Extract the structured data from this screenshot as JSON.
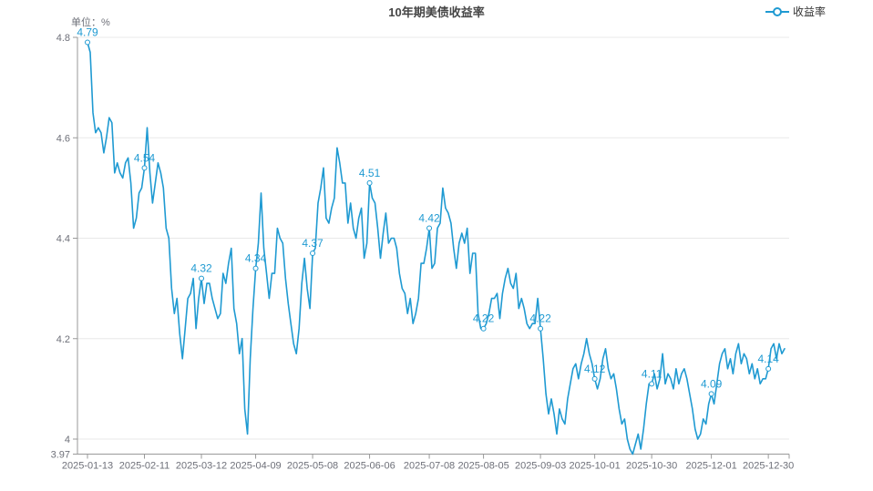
{
  "header": {
    "title": "10年期美债收益率"
  },
  "legend": {
    "items": [
      {
        "label": "收益率",
        "color": "#1f9ad2"
      }
    ]
  },
  "chart_data": {
    "type": "line",
    "title": "10年期美债收益率",
    "series_name": "收益率",
    "unit": "单位：%",
    "line_color": "#1f9ad2",
    "grid_color": "#e8e8e8",
    "axis_color": "#999999",
    "axis_label_color": "#6e7079",
    "ylim": [
      3.97,
      4.8
    ],
    "y_ticks": [
      {
        "value": 4.8,
        "label": "4.8",
        "grid": true
      },
      {
        "value": 4.6,
        "label": "4.6",
        "grid": true
      },
      {
        "value": 4.4,
        "label": "4.4",
        "grid": true
      },
      {
        "value": 4.2,
        "label": "4.2",
        "grid": true
      },
      {
        "value": 4.0,
        "label": "4",
        "grid": true
      },
      {
        "value": 3.97,
        "label": "3.97",
        "grid": false
      }
    ],
    "x_tick_labels": [
      "2025-01-13",
      "2025-02-11",
      "2025-03-12",
      "2025-04-09",
      "2025-05-08",
      "2025-06-06",
      "2025-07-08",
      "2025-08-05",
      "2025-09-03",
      "2025-10-01",
      "2025-10-30",
      "2025-12-01",
      "2025-12-30"
    ],
    "labeled_points": [
      {
        "date": "2025-01-13",
        "value": 4.79
      },
      {
        "date": "2025-02-11",
        "value": 4.54
      },
      {
        "date": "2025-03-12",
        "value": 4.32
      },
      {
        "date": "2025-04-09",
        "value": 4.34
      },
      {
        "date": "2025-05-08",
        "value": 4.37
      },
      {
        "date": "2025-06-06",
        "value": 4.51
      },
      {
        "date": "2025-07-08",
        "value": 4.42
      },
      {
        "date": "2025-08-05",
        "value": 4.22
      },
      {
        "date": "2025-09-03",
        "value": 4.22
      },
      {
        "date": "2025-10-01",
        "value": 4.12
      },
      {
        "date": "2025-10-30",
        "value": 4.11
      },
      {
        "date": "2025-12-01",
        "value": 4.09
      },
      {
        "date": "2025-12-30",
        "value": 4.14
      }
    ],
    "dates": [
      "2025-01-13",
      "2025-01-14",
      "2025-01-15",
      "2025-01-16",
      "2025-01-17",
      "2025-01-20",
      "2025-01-21",
      "2025-01-22",
      "2025-01-23",
      "2025-01-24",
      "2025-01-27",
      "2025-01-28",
      "2025-01-29",
      "2025-01-30",
      "2025-01-31",
      "2025-02-03",
      "2025-02-04",
      "2025-02-05",
      "2025-02-06",
      "2025-02-07",
      "2025-02-10",
      "2025-02-11",
      "2025-02-12",
      "2025-02-13",
      "2025-02-14",
      "2025-02-17",
      "2025-02-18",
      "2025-02-19",
      "2025-02-20",
      "2025-02-21",
      "2025-02-24",
      "2025-02-25",
      "2025-02-26",
      "2025-02-27",
      "2025-02-28",
      "2025-03-03",
      "2025-03-04",
      "2025-03-05",
      "2025-03-06",
      "2025-03-07",
      "2025-03-10",
      "2025-03-11",
      "2025-03-12",
      "2025-03-13",
      "2025-03-14",
      "2025-03-17",
      "2025-03-18",
      "2025-03-19",
      "2025-03-20",
      "2025-03-21",
      "2025-03-24",
      "2025-03-25",
      "2025-03-26",
      "2025-03-27",
      "2025-03-28",
      "2025-03-31",
      "2025-04-01",
      "2025-04-02",
      "2025-04-03",
      "2025-04-04",
      "2025-04-07",
      "2025-04-08",
      "2025-04-09",
      "2025-04-10",
      "2025-04-11",
      "2025-04-14",
      "2025-04-15",
      "2025-04-16",
      "2025-04-17",
      "2025-04-18",
      "2025-04-21",
      "2025-04-22",
      "2025-04-23",
      "2025-04-24",
      "2025-04-25",
      "2025-04-28",
      "2025-04-29",
      "2025-04-30",
      "2025-05-01",
      "2025-05-02",
      "2025-05-05",
      "2025-05-06",
      "2025-05-07",
      "2025-05-08",
      "2025-05-09",
      "2025-05-12",
      "2025-05-13",
      "2025-05-14",
      "2025-05-15",
      "2025-05-16",
      "2025-05-19",
      "2025-05-20",
      "2025-05-21",
      "2025-05-22",
      "2025-05-23",
      "2025-05-26",
      "2025-05-27",
      "2025-05-28",
      "2025-05-29",
      "2025-05-30",
      "2025-06-02",
      "2025-06-03",
      "2025-06-04",
      "2025-06-05",
      "2025-06-06",
      "2025-06-09",
      "2025-06-10",
      "2025-06-11",
      "2025-06-12",
      "2025-06-13",
      "2025-06-16",
      "2025-06-17",
      "2025-06-18",
      "2025-06-19",
      "2025-06-20",
      "2025-06-23",
      "2025-06-24",
      "2025-06-25",
      "2025-06-26",
      "2025-06-27",
      "2025-06-30",
      "2025-07-01",
      "2025-07-02",
      "2025-07-03",
      "2025-07-04",
      "2025-07-07",
      "2025-07-08",
      "2025-07-09",
      "2025-07-10",
      "2025-07-11",
      "2025-07-14",
      "2025-07-15",
      "2025-07-16",
      "2025-07-17",
      "2025-07-18",
      "2025-07-21",
      "2025-07-22",
      "2025-07-23",
      "2025-07-24",
      "2025-07-25",
      "2025-07-28",
      "2025-07-29",
      "2025-07-30",
      "2025-07-31",
      "2025-08-01",
      "2025-08-04",
      "2025-08-05",
      "2025-08-06",
      "2025-08-07",
      "2025-08-08",
      "2025-08-11",
      "2025-08-12",
      "2025-08-13",
      "2025-08-14",
      "2025-08-15",
      "2025-08-18",
      "2025-08-19",
      "2025-08-20",
      "2025-08-21",
      "2025-08-22",
      "2025-08-25",
      "2025-08-26",
      "2025-08-27",
      "2025-08-28",
      "2025-08-29",
      "2025-09-01",
      "2025-09-02",
      "2025-09-03",
      "2025-09-04",
      "2025-09-05",
      "2025-09-08",
      "2025-09-09",
      "2025-09-10",
      "2025-09-11",
      "2025-09-12",
      "2025-09-15",
      "2025-09-16",
      "2025-09-17",
      "2025-09-18",
      "2025-09-19",
      "2025-09-22",
      "2025-09-23",
      "2025-09-24",
      "2025-09-25",
      "2025-09-26",
      "2025-09-29",
      "2025-09-30",
      "2025-10-01",
      "2025-10-02",
      "2025-10-03",
      "2025-10-06",
      "2025-10-07",
      "2025-10-08",
      "2025-10-09",
      "2025-10-10",
      "2025-10-13",
      "2025-10-14",
      "2025-10-15",
      "2025-10-16",
      "2025-10-17",
      "2025-10-20",
      "2025-10-21",
      "2025-10-22",
      "2025-10-23",
      "2025-10-24",
      "2025-10-27",
      "2025-10-28",
      "2025-10-29",
      "2025-10-30",
      "2025-10-31",
      "2025-11-03",
      "2025-11-04",
      "2025-11-05",
      "2025-11-06",
      "2025-11-07",
      "2025-11-10",
      "2025-11-11",
      "2025-11-12",
      "2025-11-13",
      "2025-11-14",
      "2025-11-17",
      "2025-11-18",
      "2025-11-19",
      "2025-11-20",
      "2025-11-21",
      "2025-11-24",
      "2025-11-25",
      "2025-11-26",
      "2025-11-27",
      "2025-11-28",
      "2025-12-01",
      "2025-12-02",
      "2025-12-03",
      "2025-12-04",
      "2025-12-05",
      "2025-12-08",
      "2025-12-09",
      "2025-12-10",
      "2025-12-11",
      "2025-12-12",
      "2025-12-15",
      "2025-12-16",
      "2025-12-17",
      "2025-12-18",
      "2025-12-19",
      "2025-12-22",
      "2025-12-23",
      "2025-12-24",
      "2025-12-25",
      "2025-12-26",
      "2025-12-29",
      "2025-12-30",
      "2025-12-31",
      "2026-01-02",
      "2026-01-05",
      "2026-01-06",
      "2026-01-07",
      "2026-01-08"
    ],
    "values": [
      4.79,
      4.77,
      4.65,
      4.61,
      4.62,
      4.61,
      4.57,
      4.6,
      4.64,
      4.63,
      4.53,
      4.55,
      4.53,
      4.52,
      4.55,
      4.56,
      4.51,
      4.42,
      4.44,
      4.49,
      4.5,
      4.54,
      4.62,
      4.53,
      4.47,
      4.51,
      4.55,
      4.53,
      4.5,
      4.42,
      4.4,
      4.3,
      4.25,
      4.28,
      4.21,
      4.16,
      4.22,
      4.28,
      4.29,
      4.32,
      4.22,
      4.28,
      4.32,
      4.27,
      4.31,
      4.31,
      4.28,
      4.26,
      4.24,
      4.25,
      4.33,
      4.31,
      4.35,
      4.38,
      4.26,
      4.23,
      4.17,
      4.2,
      4.06,
      4.01,
      4.16,
      4.26,
      4.34,
      4.39,
      4.49,
      4.38,
      4.33,
      4.28,
      4.33,
      4.33,
      4.42,
      4.4,
      4.39,
      4.32,
      4.27,
      4.23,
      4.19,
      4.17,
      4.22,
      4.31,
      4.36,
      4.3,
      4.26,
      4.37,
      4.38,
      4.47,
      4.5,
      4.54,
      4.44,
      4.43,
      4.46,
      4.48,
      4.58,
      4.55,
      4.51,
      4.51,
      4.43,
      4.47,
      4.42,
      4.4,
      4.44,
      4.46,
      4.36,
      4.39,
      4.51,
      4.48,
      4.47,
      4.42,
      4.36,
      4.41,
      4.45,
      4.39,
      4.4,
      4.4,
      4.38,
      4.33,
      4.3,
      4.29,
      4.25,
      4.28,
      4.23,
      4.25,
      4.28,
      4.35,
      4.35,
      4.38,
      4.42,
      4.34,
      4.35,
      4.42,
      4.43,
      4.5,
      4.46,
      4.45,
      4.43,
      4.38,
      4.34,
      4.39,
      4.41,
      4.39,
      4.42,
      4.33,
      4.37,
      4.37,
      4.25,
      4.22,
      4.22,
      4.23,
      4.25,
      4.28,
      4.28,
      4.29,
      4.24,
      4.29,
      4.32,
      4.34,
      4.31,
      4.3,
      4.33,
      4.26,
      4.28,
      4.26,
      4.23,
      4.22,
      4.23,
      4.23,
      4.28,
      4.22,
      4.16,
      4.09,
      4.05,
      4.08,
      4.05,
      4.01,
      4.06,
      4.04,
      4.03,
      4.08,
      4.11,
      4.14,
      4.15,
      4.12,
      4.15,
      4.17,
      4.2,
      4.17,
      4.15,
      4.12,
      4.1,
      4.12,
      4.16,
      4.18,
      4.14,
      4.12,
      4.13,
      4.1,
      4.06,
      4.03,
      4.04,
      4.0,
      3.98,
      3.97,
      3.99,
      4.01,
      3.98,
      4.02,
      4.07,
      4.11,
      4.11,
      4.13,
      4.1,
      4.12,
      4.17,
      4.11,
      4.13,
      4.12,
      4.1,
      4.14,
      4.11,
      4.13,
      4.14,
      4.12,
      4.09,
      4.06,
      4.02,
      4.0,
      4.01,
      4.04,
      4.03,
      4.07,
      4.09,
      4.07,
      4.11,
      4.15,
      4.17,
      4.18,
      4.14,
      4.16,
      4.13,
      4.17,
      4.19,
      4.15,
      4.17,
      4.16,
      4.13,
      4.15,
      4.12,
      4.14,
      4.11,
      4.12,
      4.12,
      4.14,
      4.18,
      4.19,
      4.16,
      4.19,
      4.17,
      4.18
    ]
  }
}
